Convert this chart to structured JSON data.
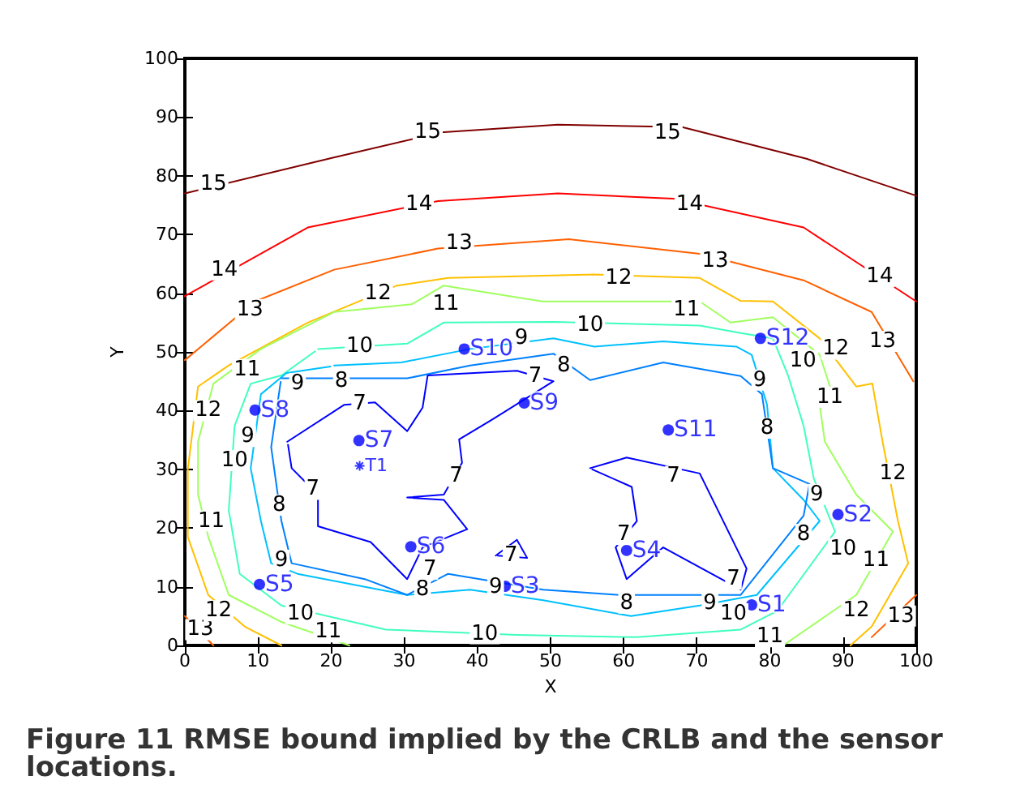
{
  "chart_data": {
    "type": "line",
    "xlabel": "X",
    "ylabel": "Y",
    "xlim": [
      0,
      100
    ],
    "ylim": [
      0,
      100
    ],
    "xticks": [
      0,
      10,
      20,
      30,
      40,
      50,
      60,
      70,
      80,
      90,
      100
    ],
    "yticks": [
      0,
      10,
      20,
      30,
      40,
      50,
      60,
      70,
      80,
      90,
      100
    ],
    "grid": false,
    "line_style": "solid",
    "series": [
      {
        "color": "#800000",
        "x": [
          0,
          20,
          35,
          51,
          68,
          85,
          100
        ],
        "values": [
          77,
          83,
          87.4,
          88.7,
          88.3,
          82.9,
          76.6
        ]
      },
      {
        "color": "#ff0000",
        "x": [
          0,
          16.8,
          34.6,
          51,
          66.8,
          84.6,
          100
        ],
        "values": [
          59.5,
          71.2,
          75.7,
          77,
          76.1,
          71.2,
          58.6
        ]
      },
      {
        "color": "#ff6000",
        "x": [
          0,
          9.6,
          20.4,
          34.6,
          52.5,
          70.4,
          84.6,
          93.9,
          99.6
        ],
        "values": [
          48.6,
          58.6,
          64,
          67.6,
          69.2,
          66.7,
          62.2,
          56.8,
          45
        ]
      },
      {
        "color": "#ff6000",
        "x": [
          93.9,
          100
        ],
        "values": [
          1.4,
          8.6
        ]
      },
      {
        "color": "#ff6000",
        "x": [
          0,
          3.9
        ],
        "values": [
          5,
          0
        ]
      },
      {
        "color": "#ffc000",
        "x": [
          13.2,
          8.2,
          3.2,
          0.4,
          0.4,
          1.8,
          6,
          16.8,
          29,
          36,
          56,
          70.4,
          76,
          80.4,
          86.8,
          91.8,
          94,
          95.4,
          97.5,
          98.9,
          93.9,
          91
        ],
        "values": [
          0,
          3.2,
          8.6,
          18.5,
          30,
          44.1,
          47.7,
          55,
          61.3,
          62.6,
          63.2,
          62.6,
          58.7,
          58.6,
          52.3,
          44.1,
          44.6,
          34.7,
          21.2,
          14,
          3.2,
          0
        ]
      },
      {
        "color": "#a0ff60",
        "x": [
          22.5,
          13.2,
          6,
          3.2,
          1.8,
          1.8,
          3.9,
          10.4,
          20.4,
          31,
          35.4,
          48.9,
          70.4,
          74.6,
          80.4,
          86.8,
          88.2,
          86.8,
          87.5,
          91.8,
          96.8,
          91.8,
          81.8
        ],
        "values": [
          0,
          4,
          8.6,
          18.5,
          25.7,
          34.7,
          44.6,
          50.5,
          56.8,
          58.1,
          61.3,
          58.6,
          58.6,
          55,
          55.9,
          49.5,
          44.1,
          41,
          34.7,
          25.7,
          19.4,
          8.6,
          0
        ]
      },
      {
        "color": "#40ffbf",
        "x": [
          18.2,
          30.4,
          35.4,
          50.4,
          70.4,
          76,
          80.4,
          82.5,
          84.6,
          86,
          88.9,
          81,
          76,
          61.8,
          45.4,
          27.5,
          13.2,
          7.5,
          6,
          6.8,
          9,
          13.2,
          17.8
        ],
        "values": [
          50.5,
          51.4,
          55,
          55.1,
          54.5,
          53.2,
          52.3,
          45.9,
          37.4,
          28.4,
          19.4,
          5.9,
          2.7,
          1.4,
          1.8,
          2.7,
          6.8,
          12.2,
          23,
          37.4,
          44.6,
          46,
          50.1
        ]
      },
      {
        "color": "#00c0ff",
        "x": [
          20.4,
          29.6,
          39,
          50.4,
          56,
          65.4,
          75.4,
          77.5,
          79.6,
          80.4,
          84.6,
          86.8,
          78.2,
          70.4,
          61,
          49,
          39,
          30.4,
          15.4,
          11.8,
          10.4,
          9,
          10.4,
          13.9,
          19.9
        ],
        "values": [
          47.7,
          48.2,
          50.5,
          52.3,
          50.9,
          51.8,
          50.9,
          49.5,
          41,
          30.2,
          24.8,
          21.2,
          8.6,
          6.8,
          5,
          7.7,
          9.5,
          8.6,
          12.2,
          14,
          21.2,
          30.2,
          42.8,
          46.4,
          47.5
        ]
      },
      {
        "color": "#0080ff",
        "x": [
          13.2,
          20.4,
          30.4,
          39,
          50.4,
          55.4,
          65.4,
          76,
          78.9,
          80.4,
          85.4,
          84.6,
          76,
          59.6,
          49,
          36,
          30.4,
          24.6,
          14.6,
          13.2,
          11.8,
          13.1
        ],
        "values": [
          45.5,
          45.5,
          45.5,
          47.7,
          49.7,
          45.2,
          48.2,
          45.9,
          42.8,
          30.2,
          27.5,
          22.1,
          8.6,
          8.6,
          9.5,
          12.2,
          8.6,
          11.3,
          14,
          21.2,
          33.8,
          44.9
        ]
      },
      {
        "color": "#0000ff",
        "x": [
          14,
          21.8,
          26,
          30.4,
          32.5,
          33.2,
          45.4,
          50.4,
          41.8,
          37.5,
          37.9,
          35.4,
          30.4,
          35.4,
          38.6,
          32.5,
          30.4,
          25.4,
          18.2,
          18.2,
          14.6,
          14.1
        ],
        "values": [
          34.7,
          41,
          41.4,
          36.5,
          40.5,
          46,
          46.8,
          45,
          38.3,
          35.1,
          31.1,
          25.7,
          25.2,
          24.8,
          19.8,
          16.7,
          11.3,
          17.6,
          20.3,
          25.7,
          30.2,
          34.2
        ]
      },
      {
        "color": "#0000ff",
        "x": [
          55.4,
          60.4,
          70.4,
          76.8,
          76,
          65.4,
          60.4,
          58.9,
          61.8,
          61.1,
          55.7
        ],
        "values": [
          30.2,
          32,
          29.3,
          13.1,
          9.5,
          16.7,
          11.3,
          16.7,
          21.2,
          27,
          30
        ]
      },
      {
        "color": "#0000ff",
        "x": [
          42.5,
          45.4,
          46.8,
          42.8
        ],
        "values": [
          15.3,
          18,
          14.9,
          15.3
        ]
      },
      {
        "type": "scatter",
        "color": "#0000ff",
        "marker": "circle",
        "x": [
          77.5,
          89.3,
          43.8,
          60.4,
          10.2,
          30.9,
          23.8,
          9.6,
          46.4,
          38.2,
          66.1,
          78.7
        ],
        "values": [
          6.9,
          22.3,
          10.1,
          16.2,
          10.4,
          16.8,
          34.9,
          40.1,
          41.3,
          50.5,
          36.7,
          52.3
        ],
        "value_labels": [
          "S1",
          "S2",
          "S3",
          "S4",
          "S5",
          "S6",
          "S7",
          "S8",
          "S9",
          "S10",
          "S11",
          "S12"
        ]
      },
      {
        "type": "scatter",
        "color": "#0000ff",
        "marker": "cross",
        "x": [
          23.9
        ],
        "values": [
          30.6
        ],
        "value_labels": [
          "T1"
        ]
      }
    ],
    "annotations": [
      {
        "text": "15",
        "x": 33.2,
        "y": 87.5
      },
      {
        "text": "15",
        "x": 66,
        "y": 87.3
      },
      {
        "text": "15",
        "x": 3.9,
        "y": 78.6
      },
      {
        "text": "14",
        "x": 32,
        "y": 75.2
      },
      {
        "text": "14",
        "x": 69,
        "y": 75.2
      },
      {
        "text": "14",
        "x": 5.4,
        "y": 64
      },
      {
        "text": "14",
        "x": 95,
        "y": 62.8
      },
      {
        "text": "13",
        "x": 37.5,
        "y": 68.5
      },
      {
        "text": "13",
        "x": 72.5,
        "y": 65.5
      },
      {
        "text": "13",
        "x": 8.9,
        "y": 57.2
      },
      {
        "text": "13",
        "x": 95.4,
        "y": 51.8
      },
      {
        "text": "13",
        "x": 2.1,
        "y": 2.7
      },
      {
        "text": "13",
        "x": 97.9,
        "y": 5
      },
      {
        "text": "12",
        "x": 59.3,
        "y": 62.6
      },
      {
        "text": "12",
        "x": 26.4,
        "y": 60
      },
      {
        "text": "12",
        "x": 89,
        "y": 50.5
      },
      {
        "text": "12",
        "x": 3.2,
        "y": 40
      },
      {
        "text": "12",
        "x": 4.6,
        "y": 5.9
      },
      {
        "text": "12",
        "x": 91.8,
        "y": 5.9
      },
      {
        "text": "12",
        "x": 96.8,
        "y": 29.3
      },
      {
        "text": "11",
        "x": 35.7,
        "y": 58.1
      },
      {
        "text": "11",
        "x": 68.6,
        "y": 57.2
      },
      {
        "text": "11",
        "x": 8.5,
        "y": 47
      },
      {
        "text": "11",
        "x": 3.6,
        "y": 21.2
      },
      {
        "text": "11",
        "x": 19.6,
        "y": 2.3
      },
      {
        "text": "11",
        "x": 80,
        "y": 1.5
      },
      {
        "text": "11",
        "x": 94.5,
        "y": 14.5
      },
      {
        "text": "11",
        "x": 88.2,
        "y": 42.3
      },
      {
        "text": "10",
        "x": 55.4,
        "y": 54.5
      },
      {
        "text": "10",
        "x": 23.9,
        "y": 50.9
      },
      {
        "text": "10",
        "x": 6.8,
        "y": 31.5
      },
      {
        "text": "10",
        "x": 75,
        "y": 5.4
      },
      {
        "text": "10",
        "x": 15.8,
        "y": 5.4
      },
      {
        "text": "10",
        "x": 41,
        "y": 2
      },
      {
        "text": "10",
        "x": 90,
        "y": 16.5
      },
      {
        "text": "10",
        "x": 84.5,
        "y": 48.5
      },
      {
        "text": "9",
        "x": 46,
        "y": 52.3
      },
      {
        "text": "9",
        "x": 15.4,
        "y": 44.6
      },
      {
        "text": "9",
        "x": 8.6,
        "y": 35.6
      },
      {
        "text": "9",
        "x": 42.5,
        "y": 9.9
      },
      {
        "text": "9",
        "x": 71.8,
        "y": 7.2
      },
      {
        "text": "9",
        "x": 13.2,
        "y": 14.5
      },
      {
        "text": "9",
        "x": 86.4,
        "y": 25.7
      },
      {
        "text": "9",
        "x": 78.6,
        "y": 45.2
      },
      {
        "text": "8",
        "x": 51.8,
        "y": 47.7
      },
      {
        "text": "8",
        "x": 21.4,
        "y": 45
      },
      {
        "text": "8",
        "x": 12.9,
        "y": 23.9
      },
      {
        "text": "8",
        "x": 32.5,
        "y": 9.5
      },
      {
        "text": "8",
        "x": 60.4,
        "y": 7.2
      },
      {
        "text": "8",
        "x": 84.6,
        "y": 18.9
      },
      {
        "text": "8",
        "x": 79.6,
        "y": 37
      },
      {
        "text": "7",
        "x": 23.9,
        "y": 41.2
      },
      {
        "text": "7",
        "x": 47.9,
        "y": 45.9
      },
      {
        "text": "7",
        "x": 37.1,
        "y": 28.8
      },
      {
        "text": "7",
        "x": 17.5,
        "y": 26.6
      },
      {
        "text": "7",
        "x": 33.5,
        "y": 13
      },
      {
        "text": "7",
        "x": 44.6,
        "y": 15.3
      },
      {
        "text": "7",
        "x": 60,
        "y": 18.9
      },
      {
        "text": "7",
        "x": 66.8,
        "y": 28.8
      },
      {
        "text": "7",
        "x": 75,
        "y": 11.3
      },
      "Figure 11 RMSE bound implied by the CRLB and the sensor locations."
    ]
  }
}
